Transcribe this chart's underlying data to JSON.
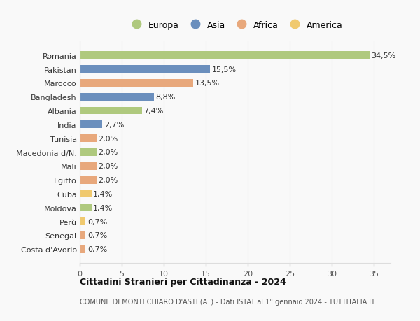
{
  "countries": [
    "Romania",
    "Pakistan",
    "Marocco",
    "Bangladesh",
    "Albania",
    "India",
    "Tunisia",
    "Macedonia d/N.",
    "Mali",
    "Egitto",
    "Cuba",
    "Moldova",
    "Perù",
    "Senegal",
    "Costa d'Avorio"
  ],
  "values": [
    34.5,
    15.5,
    13.5,
    8.8,
    7.4,
    2.7,
    2.0,
    2.0,
    2.0,
    2.0,
    1.4,
    1.4,
    0.7,
    0.7,
    0.7
  ],
  "labels": [
    "34,5%",
    "15,5%",
    "13,5%",
    "8,8%",
    "7,4%",
    "2,7%",
    "2,0%",
    "2,0%",
    "2,0%",
    "2,0%",
    "1,4%",
    "1,4%",
    "0,7%",
    "0,7%",
    "0,7%"
  ],
  "continents": [
    "Europa",
    "Asia",
    "Africa",
    "Asia",
    "Europa",
    "Asia",
    "Africa",
    "Europa",
    "Africa",
    "Africa",
    "America",
    "Europa",
    "America",
    "Africa",
    "Africa"
  ],
  "colors": {
    "Europa": "#afc97e",
    "Asia": "#6b8fbd",
    "Africa": "#e8a87c",
    "America": "#f0c96e"
  },
  "title": "Cittadini Stranieri per Cittadinanza - 2024",
  "subtitle": "COMUNE DI MONTECHIARO D'ASTI (AT) - Dati ISTAT al 1° gennaio 2024 - TUTTITALIA.IT",
  "xlim": [
    0,
    37
  ],
  "xticks": [
    0,
    5,
    10,
    15,
    20,
    25,
    30,
    35
  ],
  "background_color": "#f9f9f9",
  "grid_color": "#dddddd",
  "bar_height": 0.55,
  "label_fontsize": 8,
  "ytick_fontsize": 8,
  "xtick_fontsize": 8
}
